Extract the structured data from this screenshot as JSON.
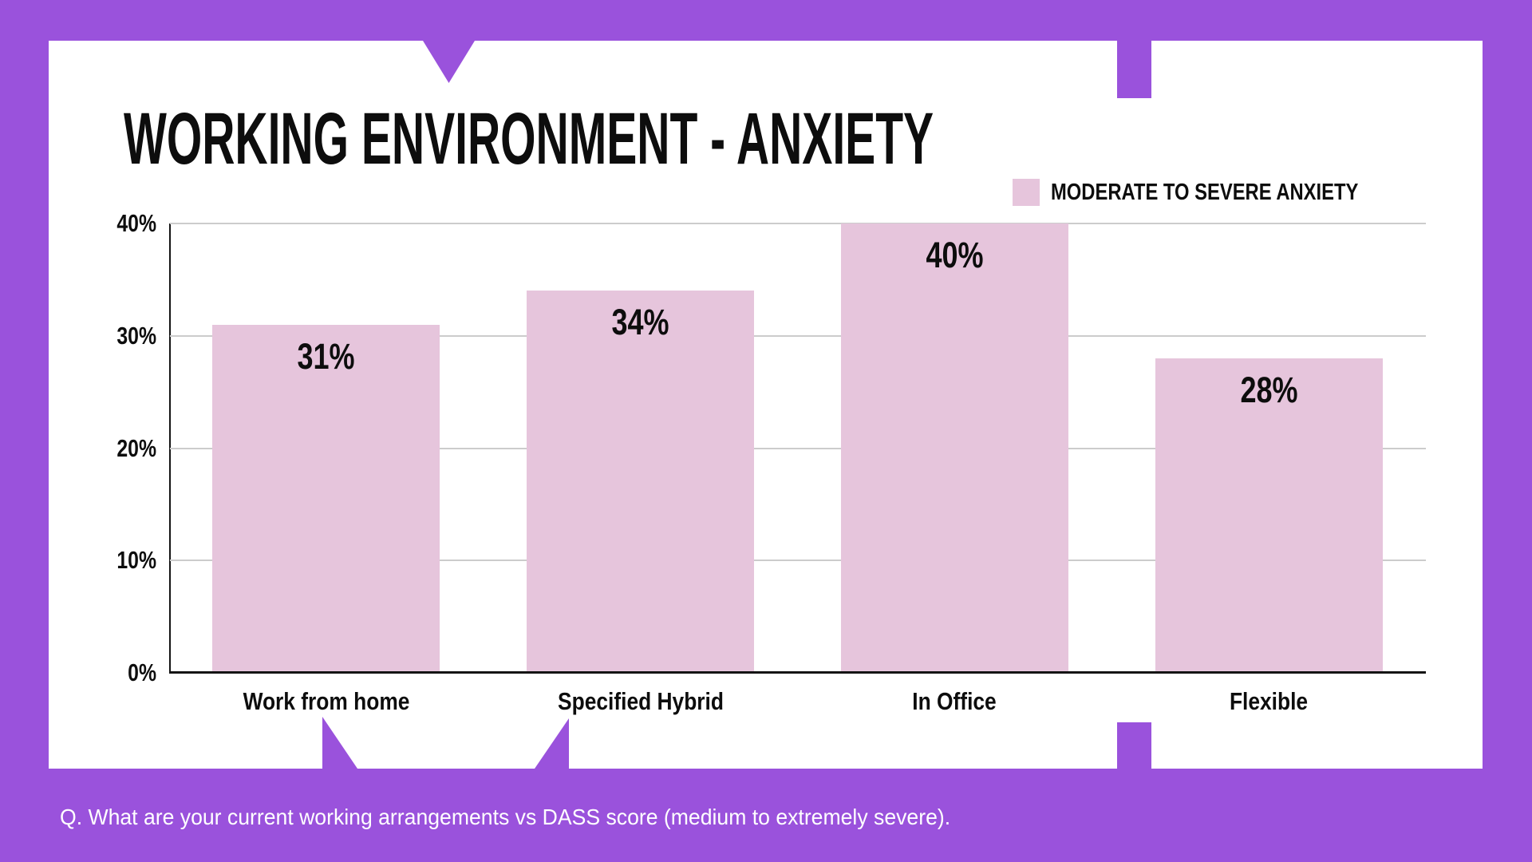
{
  "colors": {
    "purple": "#9A52DC",
    "bar_pink": "#E6C5DC",
    "gridline_gray": "#CCCCCC",
    "text_black": "#0D0D0D",
    "caption_white": "#FFFFFF"
  },
  "header": {
    "title": "WORKING ENVIRONMENT - ANXIETY"
  },
  "legend": {
    "label": "MODERATE TO SEVERE ANXIETY",
    "swatch_color": "#E6C5DC"
  },
  "chart_data": {
    "type": "bar",
    "title": "WORKING ENVIRONMENT - ANXIETY",
    "categories": [
      "Work from home",
      "Specified Hybrid",
      "In Office",
      "Flexible"
    ],
    "values": [
      31,
      34,
      40,
      28
    ],
    "value_labels": [
      "31%",
      "34%",
      "40%",
      "28%"
    ],
    "series": [
      {
        "name": "Moderate to severe anxiety",
        "values": [
          31,
          34,
          40,
          28
        ],
        "color": "#E6C5DC"
      }
    ],
    "xlabel": "",
    "ylabel": "",
    "ylim": [
      0,
      40
    ],
    "yticks": [
      0,
      10,
      20,
      30,
      40
    ],
    "ytick_labels": [
      "0%",
      "10%",
      "20%",
      "30%",
      "40%"
    ],
    "grid": "horizontal",
    "legend_position": "top-right"
  },
  "footer": {
    "caption": "Q. What are your current working arrangements vs DASS score (medium to extremely severe)."
  }
}
